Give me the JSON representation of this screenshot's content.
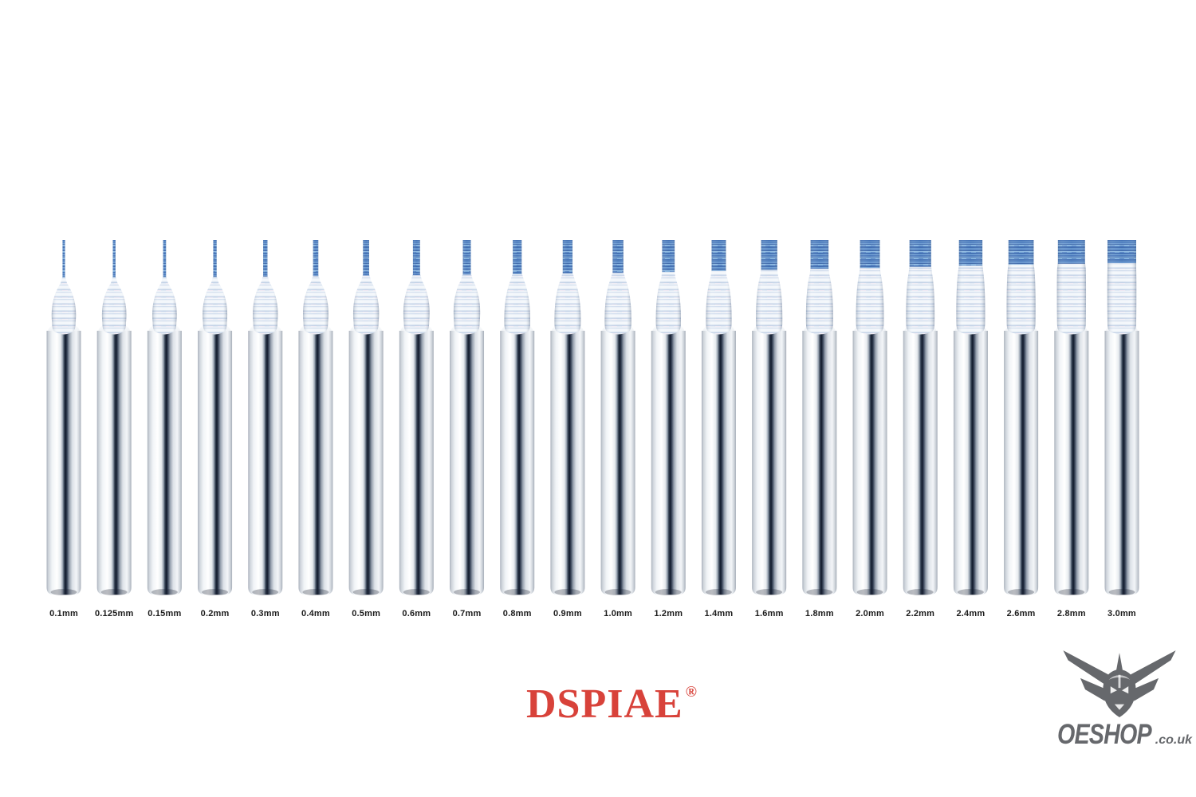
{
  "page": {
    "background_color": "#ffffff"
  },
  "product_lineup": {
    "label_color": "#1b1b1b",
    "bits": [
      {
        "label": "0.1mm",
        "size_mm": 0.1
      },
      {
        "label": "0.125mm",
        "size_mm": 0.125
      },
      {
        "label": "0.15mm",
        "size_mm": 0.15
      },
      {
        "label": "0.2mm",
        "size_mm": 0.2
      },
      {
        "label": "0.3mm",
        "size_mm": 0.3
      },
      {
        "label": "0.4mm",
        "size_mm": 0.4
      },
      {
        "label": "0.5mm",
        "size_mm": 0.5
      },
      {
        "label": "0.6mm",
        "size_mm": 0.6
      },
      {
        "label": "0.7mm",
        "size_mm": 0.7
      },
      {
        "label": "0.8mm",
        "size_mm": 0.8
      },
      {
        "label": "0.9mm",
        "size_mm": 0.9
      },
      {
        "label": "1.0mm",
        "size_mm": 1.0
      },
      {
        "label": "1.2mm",
        "size_mm": 1.2
      },
      {
        "label": "1.4mm",
        "size_mm": 1.4
      },
      {
        "label": "1.6mm",
        "size_mm": 1.6
      },
      {
        "label": "1.8mm",
        "size_mm": 1.8
      },
      {
        "label": "2.0mm",
        "size_mm": 2.0
      },
      {
        "label": "2.2mm",
        "size_mm": 2.2
      },
      {
        "label": "2.4mm",
        "size_mm": 2.4
      },
      {
        "label": "2.6mm",
        "size_mm": 2.6
      },
      {
        "label": "2.8mm",
        "size_mm": 2.8
      },
      {
        "label": "3.0mm",
        "size_mm": 3.0
      }
    ]
  },
  "branding": {
    "name": "DSPIAE",
    "registered_mark": "®",
    "color": "#d8423a"
  },
  "retailer": {
    "name": "OESHOP",
    "domain_suffix": ".co.uk",
    "color": "#66686c",
    "icon": "mecha-head-icon"
  },
  "colors": {
    "tip_blue": "#4a78bb",
    "iridescent_light": "#e8eef6",
    "chrome_dark_stripe": "#10192b",
    "chrome_light": "#f7f9fb"
  }
}
